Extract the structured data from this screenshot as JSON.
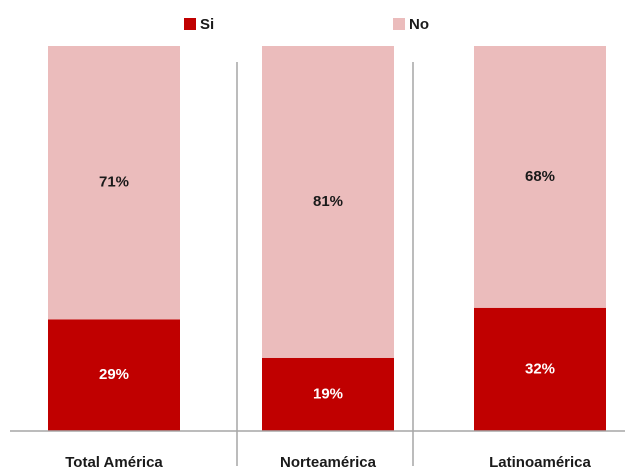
{
  "chart_data": {
    "type": "stacked_bar",
    "categories": [
      "Total América",
      "Norteamérica",
      "Latinoamérica"
    ],
    "series": [
      {
        "name": "Si",
        "color": "#c00000",
        "values": [
          29,
          19,
          32
        ],
        "value_labels": [
          "29%",
          "19%",
          "32%"
        ]
      },
      {
        "name": "No",
        "color": "#ebbcbc",
        "values": [
          71,
          81,
          68
        ],
        "value_labels": [
          "71%",
          "81%",
          "68%"
        ]
      }
    ],
    "ylim": [
      0,
      100
    ]
  }
}
